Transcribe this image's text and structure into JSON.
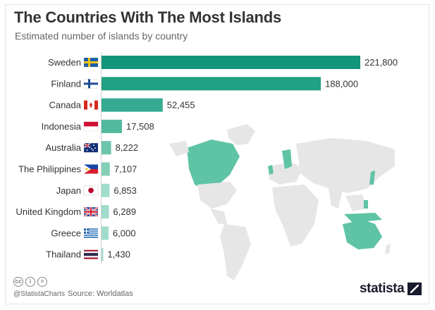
{
  "title": "The Countries With The Most Islands",
  "subtitle": "Estimated number of islands by country",
  "footer": {
    "cc_icons": [
      "cc",
      "i",
      "="
    ],
    "handle": "@StatistaCharts",
    "source": "Source: Worldatlas",
    "logo": "statista"
  },
  "colors": {
    "bar_dark": "#12957a",
    "bar_mid": "#2aa38a",
    "bar_light": "#9fdccb",
    "map_land": "#e6e6e6",
    "map_highlight": "#5fc3a5"
  },
  "chart_data": {
    "type": "bar",
    "orientation": "horizontal",
    "categories": [
      "Sweden",
      "Finland",
      "Canada",
      "Indonesia",
      "Australia",
      "The Philippines",
      "Japan",
      "United Kingdom",
      "Greece",
      "Thailand"
    ],
    "values": [
      221800,
      188000,
      52455,
      17508,
      8222,
      7107,
      6853,
      6289,
      6000,
      1430
    ],
    "value_labels": [
      "221,800",
      "188,000",
      "52,455",
      "17,508",
      "8,222",
      "7,107",
      "6,853",
      "6,289",
      "6,000",
      "1,430"
    ],
    "flags": [
      "flag-sweden-icon",
      "flag-finland-icon",
      "flag-canada-icon",
      "flag-indonesia-icon",
      "flag-australia-icon",
      "flag-philippines-icon",
      "flag-japan-icon",
      "flag-uk-icon",
      "flag-greece-icon",
      "flag-thailand-icon"
    ],
    "title": "The Countries With The Most Islands",
    "xlabel": "",
    "ylabel": "",
    "xlim": [
      0,
      221800
    ],
    "grid": false,
    "legend": "none",
    "background": "world map with highlighted countries"
  }
}
